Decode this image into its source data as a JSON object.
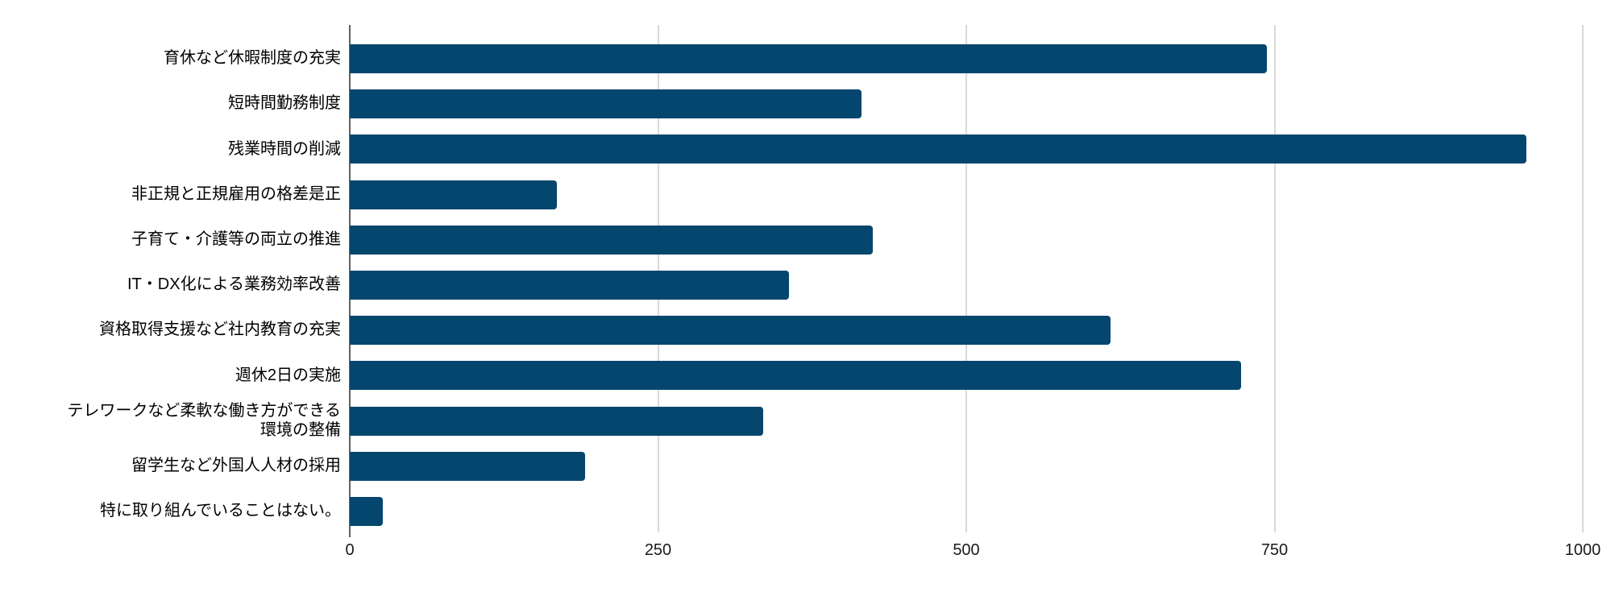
{
  "chart_data": {
    "type": "bar",
    "orientation": "horizontal",
    "title": "",
    "xlabel": "",
    "ylabel": "",
    "legend_position": "none",
    "grid": true,
    "categories": [
      "育休など休暇制度の充実",
      "短時間勤務制度",
      "残業時間の削減",
      "非正規と正規雇用の格差是正",
      "子育て・介護等の両立の推進",
      "IT・DX化による業務効率改善",
      "資格取得支援など社内教育の充実",
      "週休2日の実施",
      "テレワークなど柔軟な働き方ができる\n環境の整備",
      "留学生など外国人人材の採用",
      "特に取り組んでいることはない。"
    ],
    "values": [
      744,
      415,
      954,
      168,
      424,
      356,
      617,
      723,
      335,
      191,
      27
    ],
    "xlim": [
      0,
      1000
    ],
    "x_tick_labels": [
      "0",
      "250",
      "500",
      "750",
      "1000"
    ],
    "x_tick_values": [
      0,
      250,
      500,
      750,
      1000
    ],
    "colors": {
      "bar": "#04466e",
      "gridline": "#d9d9d9",
      "axis_line": "#616161",
      "tick_text": "#1a1a1a",
      "label_text": "#000000",
      "background": "#ffffff"
    }
  }
}
